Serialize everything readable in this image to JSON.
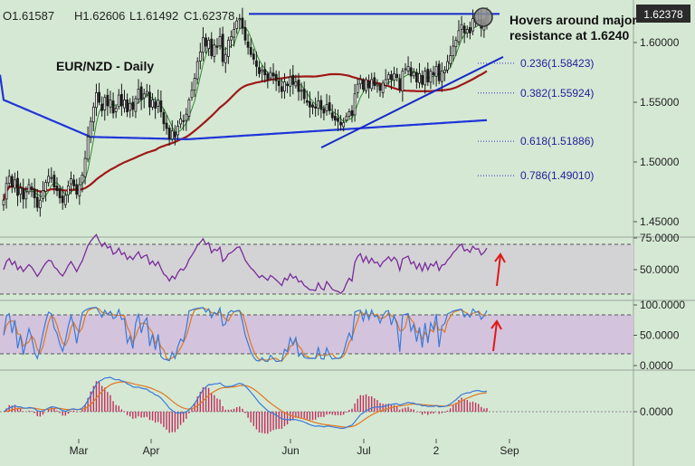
{
  "ohlc_header": {
    "open": "O1.61587",
    "high": "H1.62606",
    "low": "L1.61492",
    "close": "C1.62378"
  },
  "title": "EUR/NZD - Daily",
  "annotation": {
    "line1": "Hovers around major",
    "line2": "resistance at 1.6240"
  },
  "price_tag": "1.62378",
  "colors": {
    "background": "#d5e8d4",
    "panel_grey": "#d3d3d6",
    "panel_purple": "#d3c3dd",
    "candle": "#1a1a1a",
    "sma_short": "#2e8b2e",
    "sma_mid": "#a01818",
    "sma_long": "#1f35d8",
    "trend_lines": "#1428c8",
    "rsi": "#7a2a9a",
    "stoch_k": "#3a7ad8",
    "stoch_d": "#e07820",
    "macd_hist": "#c03060",
    "arrow": "#e01818",
    "fib_lines": "#2d2dd0"
  },
  "chart_data": [
    {
      "type": "candlestick",
      "panel": "price",
      "y_ticks": [
        "1.60000",
        "1.55000",
        "1.50000",
        "1.45000"
      ],
      "x_labels": [
        "Mar",
        "Apr",
        "Jun",
        "Jul",
        "2",
        "Sep"
      ],
      "last_close": 1.62378,
      "ohlc": {
        "open": 1.61587,
        "high": 1.62606,
        "low": 1.61492,
        "close": 1.62378
      },
      "resistance_level": 1.624,
      "fibonacci": [
        {
          "label": "0.236(1.58423)",
          "value": 1.58423
        },
        {
          "label": "0.382(1.55924)",
          "value": 1.55924
        },
        {
          "label": "0.618(1.51886)",
          "value": 1.51886
        },
        {
          "label": "0.786(1.49010)",
          "value": 1.4901
        }
      ],
      "trendline": {
        "start": 1.512,
        "end": 1.588
      },
      "closes": [
        1.468,
        1.482,
        1.488,
        1.479,
        1.485,
        1.472,
        1.478,
        1.469,
        1.475,
        1.481,
        1.477,
        1.47,
        1.462,
        1.468,
        1.476,
        1.483,
        1.488,
        1.487,
        1.479,
        1.476,
        1.47,
        1.466,
        1.472,
        1.48,
        1.486,
        1.48,
        1.473,
        1.481,
        1.489,
        1.503,
        1.521,
        1.534,
        1.546,
        1.558,
        1.55,
        1.543,
        1.554,
        1.547,
        1.552,
        1.541,
        1.545,
        1.556,
        1.547,
        1.552,
        1.542,
        1.549,
        1.544,
        1.553,
        1.561,
        1.552,
        1.557,
        1.559,
        1.546,
        1.552,
        1.545,
        1.552,
        1.542,
        1.532,
        1.528,
        1.519,
        1.526,
        1.521,
        1.53,
        1.536,
        1.534,
        1.54,
        1.552,
        1.56,
        1.57,
        1.584,
        1.592,
        1.604,
        1.597,
        1.602,
        1.589,
        1.598,
        1.596,
        1.605,
        1.584,
        1.59,
        1.602,
        1.605,
        1.611,
        1.618,
        1.62,
        1.612,
        1.602,
        1.596,
        1.59,
        1.586,
        1.58,
        1.574,
        1.577,
        1.573,
        1.569,
        1.575,
        1.572,
        1.568,
        1.564,
        1.559,
        1.567,
        1.564,
        1.571,
        1.565,
        1.567,
        1.559,
        1.56,
        1.553,
        1.55,
        1.546,
        1.546,
        1.545,
        1.551,
        1.544,
        1.541,
        1.548,
        1.543,
        1.537,
        1.535,
        1.534,
        1.531,
        1.533,
        1.538,
        1.542,
        1.539,
        1.557,
        1.565,
        1.569,
        1.561,
        1.569,
        1.562,
        1.569,
        1.564,
        1.565,
        1.56,
        1.566,
        1.569,
        1.573,
        1.569,
        1.574,
        1.571,
        1.561,
        1.576,
        1.578,
        1.58,
        1.572,
        1.575,
        1.567,
        1.574,
        1.565,
        1.576,
        1.567,
        1.576,
        1.573,
        1.58,
        1.568,
        1.576,
        1.577,
        1.584,
        1.589,
        1.597,
        1.602,
        1.61,
        1.615,
        1.608,
        1.611,
        1.608,
        1.62,
        1.617,
        1.618,
        1.612,
        1.616,
        1.624
      ]
    },
    {
      "type": "line",
      "panel": "rsi",
      "y_ticks": [
        "75.0000",
        "50.0000"
      ],
      "levels": [
        70,
        30
      ],
      "last_value": 67
    },
    {
      "type": "line",
      "panel": "stochastic",
      "y_ticks": [
        "100.0000",
        "50.0000",
        "0.0000"
      ],
      "levels": [
        80,
        20
      ]
    },
    {
      "type": "bar",
      "panel": "macd",
      "y_ticks": [
        "0.0000"
      ]
    }
  ]
}
